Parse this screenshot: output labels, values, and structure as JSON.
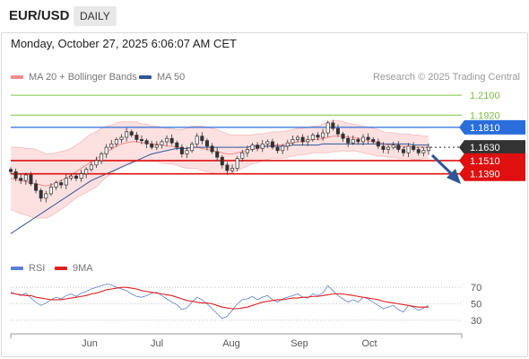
{
  "header": {
    "symbol": "EUR/USD",
    "timeframe": "DAILY"
  },
  "timestamp": "Monday, October 27, 2025 6:06:07 AM CET",
  "legend": {
    "bb": {
      "label": "MA 20 + Bollinger Bands",
      "color": "#f28b8b"
    },
    "ma50": {
      "label": "MA 50",
      "color": "#2f5597"
    },
    "rsi": {
      "label": "RSI",
      "color": "#5b7fd6"
    },
    "rsi_ma": {
      "label": "9MA",
      "color": "#e02020"
    }
  },
  "credit": "Research © 2025 Trading Central",
  "chart_data": [
    {
      "type": "candlestick",
      "panel": "price",
      "ylim": [
        1.065,
        1.219
      ],
      "x_ticks": [
        "Jun",
        "Jul",
        "Aug",
        "Sep",
        "Oct"
      ],
      "levels": [
        {
          "value": 1.21,
          "label": "1.2100",
          "kind": "target",
          "color": "#7cc242"
        },
        {
          "value": 1.192,
          "label": "1.1920",
          "kind": "target",
          "color": "#7cc242"
        },
        {
          "value": 1.181,
          "label": "1.1810",
          "kind": "pivot",
          "color": "#2a6edb"
        },
        {
          "value": 1.163,
          "label": "1.1630",
          "kind": "last",
          "color": "#333333"
        },
        {
          "value": 1.151,
          "label": "1.1510",
          "kind": "support",
          "color": "#e01010"
        },
        {
          "value": 1.139,
          "label": "1.1390",
          "kind": "support",
          "color": "#e01010"
        }
      ],
      "trend_arrow": "down",
      "close_path": [
        1.141,
        1.135,
        1.133,
        1.138,
        1.13,
        1.124,
        1.117,
        1.121,
        1.127,
        1.131,
        1.129,
        1.135,
        1.137,
        1.135,
        1.139,
        1.143,
        1.147,
        1.151,
        1.157,
        1.163,
        1.166,
        1.17,
        1.172,
        1.177,
        1.174,
        1.17,
        1.169,
        1.166,
        1.163,
        1.165,
        1.168,
        1.171,
        1.167,
        1.163,
        1.157,
        1.16,
        1.166,
        1.173,
        1.169,
        1.164,
        1.159,
        1.154,
        1.147,
        1.142,
        1.144,
        1.153,
        1.158,
        1.161,
        1.165,
        1.162,
        1.166,
        1.168,
        1.163,
        1.16,
        1.164,
        1.167,
        1.17,
        1.172,
        1.168,
        1.17,
        1.174,
        1.172,
        1.176,
        1.185,
        1.18,
        1.175,
        1.171,
        1.167,
        1.17,
        1.168,
        1.172,
        1.17,
        1.168,
        1.164,
        1.161,
        1.163,
        1.165,
        1.161,
        1.158,
        1.164,
        1.161,
        1.158,
        1.16,
        1.163
      ],
      "ma20": [
        1.135,
        1.134,
        1.133,
        1.132,
        1.131,
        1.13,
        1.129,
        1.128,
        1.129,
        1.131,
        1.133,
        1.135,
        1.138,
        1.141,
        1.144,
        1.147,
        1.15,
        1.152,
        1.156,
        1.159,
        1.161,
        1.164,
        1.166,
        1.167,
        1.168,
        1.168,
        1.167,
        1.167,
        1.166,
        1.166,
        1.165,
        1.164,
        1.164,
        1.163,
        1.162,
        1.162,
        1.163,
        1.163,
        1.162,
        1.161,
        1.16,
        1.159,
        1.158,
        1.157,
        1.157,
        1.158,
        1.159,
        1.16,
        1.161,
        1.162,
        1.163,
        1.164,
        1.165,
        1.165,
        1.165,
        1.166,
        1.167,
        1.168,
        1.168,
        1.169,
        1.17,
        1.17,
        1.171,
        1.172,
        1.173,
        1.173,
        1.173,
        1.172,
        1.172,
        1.171,
        1.17,
        1.169,
        1.168,
        1.167,
        1.166,
        1.165,
        1.165,
        1.164,
        1.164,
        1.164,
        1.163,
        1.163,
        1.163,
        1.163
      ],
      "bb_width": [
        0.028,
        0.029,
        0.03,
        0.03,
        0.031,
        0.031,
        0.03,
        0.029,
        0.028,
        0.027,
        0.026,
        0.025,
        0.024,
        0.024,
        0.024,
        0.025,
        0.025,
        0.025,
        0.024,
        0.023,
        0.022,
        0.021,
        0.02,
        0.019,
        0.018,
        0.018,
        0.017,
        0.017,
        0.016,
        0.016,
        0.016,
        0.016,
        0.016,
        0.016,
        0.017,
        0.018,
        0.019,
        0.019,
        0.02,
        0.02,
        0.02,
        0.02,
        0.019,
        0.018,
        0.017,
        0.016,
        0.015,
        0.014,
        0.013,
        0.013,
        0.012,
        0.012,
        0.012,
        0.012,
        0.012,
        0.012,
        0.012,
        0.012,
        0.012,
        0.012,
        0.012,
        0.012,
        0.013,
        0.014,
        0.014,
        0.014,
        0.013,
        0.013,
        0.012,
        0.012,
        0.012,
        0.012,
        0.012,
        0.012,
        0.011,
        0.011,
        0.011,
        0.011,
        0.011,
        0.011,
        0.011,
        0.011,
        0.01,
        0.01
      ],
      "ma50": [
        1.085,
        1.088,
        1.091,
        1.094,
        1.097,
        1.1,
        1.103,
        1.106,
        1.109,
        1.112,
        1.115,
        1.118,
        1.121,
        1.124,
        1.127,
        1.13,
        1.133,
        1.135,
        1.137,
        1.139,
        1.141,
        1.143,
        1.145,
        1.147,
        1.149,
        1.151,
        1.153,
        1.155,
        1.157,
        1.158,
        1.159,
        1.16,
        1.161,
        1.162,
        1.162,
        1.162,
        1.163,
        1.163,
        1.163,
        1.163,
        1.163,
        1.163,
        1.163,
        1.163,
        1.163,
        1.163,
        1.163,
        1.163,
        1.164,
        1.164,
        1.164,
        1.164,
        1.164,
        1.164,
        1.164,
        1.164,
        1.165,
        1.165,
        1.165,
        1.165,
        1.165,
        1.165,
        1.166,
        1.166,
        1.166,
        1.166,
        1.166,
        1.166,
        1.166,
        1.166,
        1.166,
        1.166,
        1.166,
        1.166,
        1.166,
        1.166,
        1.166,
        1.166,
        1.166,
        1.166,
        1.165,
        1.165,
        1.165,
        1.165
      ]
    },
    {
      "type": "line",
      "panel": "rsi",
      "ylim": [
        20,
        80
      ],
      "y_ticks": [
        70,
        50,
        30
      ],
      "series": [
        {
          "name": "RSI",
          "values": [
            64,
            62,
            60,
            63,
            57,
            52,
            48,
            51,
            55,
            58,
            56,
            60,
            62,
            59,
            63,
            65,
            68,
            70,
            72,
            74,
            73,
            70,
            68,
            66,
            62,
            59,
            58,
            60,
            63,
            64,
            60,
            56,
            52,
            49,
            43,
            45,
            52,
            58,
            55,
            50,
            44,
            38,
            32,
            35,
            42,
            50,
            55,
            56,
            59,
            55,
            58,
            60,
            55,
            52,
            56,
            58,
            60,
            62,
            58,
            57,
            62,
            60,
            63,
            72,
            66,
            60,
            56,
            52,
            55,
            52,
            58,
            56,
            52,
            48,
            44,
            46,
            48,
            43,
            40,
            48,
            46,
            42,
            45,
            48
          ]
        },
        {
          "name": "9MA",
          "values": [
            63,
            62,
            61,
            60,
            60,
            58,
            57,
            56,
            55,
            55,
            55,
            56,
            57,
            58,
            59,
            60,
            62,
            63,
            65,
            67,
            68,
            69,
            70,
            70,
            69,
            68,
            66,
            65,
            64,
            63,
            62,
            61,
            60,
            58,
            56,
            54,
            53,
            52,
            51,
            51,
            50,
            48,
            46,
            45,
            44,
            44,
            45,
            46,
            48,
            50,
            52,
            53,
            54,
            55,
            55,
            56,
            57,
            57,
            58,
            58,
            59,
            59,
            60,
            61,
            62,
            62,
            62,
            61,
            60,
            59,
            58,
            57,
            56,
            55,
            53,
            52,
            51,
            50,
            49,
            48,
            47,
            46,
            46,
            46
          ]
        }
      ]
    }
  ]
}
